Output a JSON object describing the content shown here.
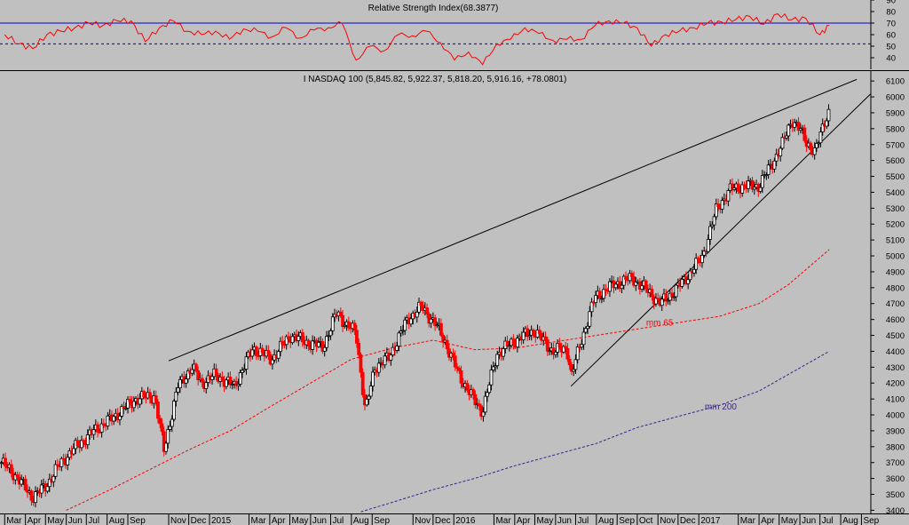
{
  "chart_data": [
    {
      "type": "line",
      "title": "Relative Strength Index(68.3877)",
      "ylim": [
        30,
        90
      ],
      "y_ticks": [
        40,
        50,
        60,
        70,
        80,
        90
      ],
      "levels": [
        {
          "value": 70,
          "style": "solid",
          "color": "#0000cc"
        },
        {
          "value": 52,
          "style": "dashed",
          "color": "#0000cc"
        }
      ],
      "series": [
        {
          "color": "#ff0000",
          "x": [
            "2014-03-01",
            "2014-03-22",
            "2014-04-12",
            "2014-05-03",
            "2014-05-24",
            "2014-06-14",
            "2014-07-05",
            "2014-07-26",
            "2014-08-16",
            "2014-09-06",
            "2014-09-27",
            "2014-10-18",
            "2014-11-08",
            "2014-11-29",
            "2014-12-20",
            "2015-01-10",
            "2015-01-31",
            "2015-02-21",
            "2015-03-14",
            "2015-04-04",
            "2015-04-25",
            "2015-05-16",
            "2015-06-06",
            "2015-06-27",
            "2015-07-18",
            "2015-08-08",
            "2015-08-29",
            "2015-09-19",
            "2015-10-10",
            "2015-10-31",
            "2015-11-21",
            "2015-12-12",
            "2016-01-02",
            "2016-01-23",
            "2016-02-13",
            "2016-03-05",
            "2016-03-26",
            "2016-04-16",
            "2016-05-07",
            "2016-05-28",
            "2016-06-18",
            "2016-07-09",
            "2016-07-30",
            "2016-08-20",
            "2016-09-10",
            "2016-10-01",
            "2016-10-22",
            "2016-11-12",
            "2016-12-03",
            "2016-12-24",
            "2017-01-14",
            "2017-02-04",
            "2017-02-25",
            "2017-03-18",
            "2017-04-08",
            "2017-04-29",
            "2017-05-20",
            "2017-06-10",
            "2017-07-01",
            "2017-07-15"
          ],
          "values": [
            60,
            52,
            48,
            60,
            63,
            66,
            70,
            68,
            72,
            72,
            54,
            66,
            72,
            63,
            60,
            63,
            56,
            65,
            63,
            58,
            66,
            57,
            64,
            66,
            70,
            38,
            50,
            46,
            60,
            59,
            63,
            53,
            38,
            45,
            34,
            52,
            56,
            66,
            61,
            55,
            56,
            56,
            68,
            72,
            70,
            66,
            50,
            60,
            63,
            66,
            70,
            71,
            73,
            76,
            69,
            78,
            73,
            74,
            60,
            68
          ]
        }
      ]
    },
    {
      "type": "candlestick",
      "title": "I NASDAQ 100 (5,845.82, 5,922.37, 5,818.20, 5,916.16, +78.0801)",
      "ylim": [
        3380,
        6140
      ],
      "y_ticks": [
        3400,
        3500,
        3600,
        3700,
        3800,
        3900,
        4000,
        4100,
        4200,
        4300,
        4400,
        4500,
        4600,
        4700,
        4800,
        4900,
        5000,
        5100,
        5200,
        5300,
        5400,
        5500,
        5600,
        5700,
        5800,
        5900,
        6000,
        6100
      ],
      "x_range": [
        "2014-02-22",
        "2017-09-15"
      ],
      "x_tick_labels": [
        {
          "label": "Mar",
          "date": "2014-03-01"
        },
        {
          "label": "Apr",
          "date": "2014-04-01"
        },
        {
          "label": "May",
          "date": "2014-05-01"
        },
        {
          "label": "Jun",
          "date": "2014-06-01"
        },
        {
          "label": "Jul",
          "date": "2014-07-01"
        },
        {
          "label": "Aug",
          "date": "2014-08-01"
        },
        {
          "label": "Sep",
          "date": "2014-09-01"
        },
        {
          "label": "Nov",
          "date": "2014-11-01"
        },
        {
          "label": "Dec",
          "date": "2014-12-01"
        },
        {
          "label": "2015",
          "date": "2015-01-01"
        },
        {
          "label": "Mar",
          "date": "2015-03-01"
        },
        {
          "label": "Apr",
          "date": "2015-04-01"
        },
        {
          "label": "May",
          "date": "2015-05-01"
        },
        {
          "label": "Jun",
          "date": "2015-06-01"
        },
        {
          "label": "Jul",
          "date": "2015-07-01"
        },
        {
          "label": "Aug",
          "date": "2015-08-01"
        },
        {
          "label": "Sep",
          "date": "2015-09-01"
        },
        {
          "label": "Nov",
          "date": "2015-11-01"
        },
        {
          "label": "Dec",
          "date": "2015-12-01"
        },
        {
          "label": "2016",
          "date": "2016-01-01"
        },
        {
          "label": "Mar",
          "date": "2016-03-01"
        },
        {
          "label": "Apr",
          "date": "2016-04-01"
        },
        {
          "label": "May",
          "date": "2016-05-01"
        },
        {
          "label": "Jun",
          "date": "2016-06-01"
        },
        {
          "label": "Jul",
          "date": "2016-07-01"
        },
        {
          "label": "Aug",
          "date": "2016-08-01"
        },
        {
          "label": "Sep",
          "date": "2016-09-01"
        },
        {
          "label": "Oct",
          "date": "2016-10-01"
        },
        {
          "label": "Nov",
          "date": "2016-11-01"
        },
        {
          "label": "Dec",
          "date": "2016-12-01"
        },
        {
          "label": "2017",
          "date": "2017-01-01"
        },
        {
          "label": "Mar",
          "date": "2017-03-01"
        },
        {
          "label": "Apr",
          "date": "2017-04-01"
        },
        {
          "label": "May",
          "date": "2017-05-01"
        },
        {
          "label": "Jun",
          "date": "2017-06-01"
        },
        {
          "label": "Jul",
          "date": "2017-07-01"
        },
        {
          "label": "Aug",
          "date": "2017-08-01"
        },
        {
          "label": "Sep",
          "date": "2017-09-01"
        }
      ],
      "candle_colors": {
        "up": "#000000",
        "down": "#ff0000"
      },
      "close_path": {
        "x": [
          "2014-02-24",
          "2014-03-15",
          "2014-04-12",
          "2014-05-03",
          "2014-05-24",
          "2014-06-21",
          "2014-07-19",
          "2014-08-09",
          "2014-09-13",
          "2014-10-11",
          "2014-10-25",
          "2014-11-15",
          "2014-12-06",
          "2014-12-20",
          "2015-01-10",
          "2015-02-07",
          "2015-03-07",
          "2015-04-04",
          "2015-05-02",
          "2015-05-30",
          "2015-06-20",
          "2015-07-11",
          "2015-07-25",
          "2015-08-08",
          "2015-08-22",
          "2015-09-05",
          "2015-09-26",
          "2015-10-24",
          "2015-11-14",
          "2015-12-05",
          "2015-12-19",
          "2016-01-09",
          "2016-01-30",
          "2016-02-13",
          "2016-03-05",
          "2016-04-02",
          "2016-04-30",
          "2016-05-28",
          "2016-06-18",
          "2016-06-25",
          "2016-07-09",
          "2016-07-30",
          "2016-08-27",
          "2016-09-24",
          "2016-10-22",
          "2016-11-05",
          "2016-11-26",
          "2016-12-17",
          "2017-01-07",
          "2017-01-28",
          "2017-02-18",
          "2017-03-11",
          "2017-04-01",
          "2017-04-15",
          "2017-05-06",
          "2017-05-20",
          "2017-06-03",
          "2017-06-10",
          "2017-06-24",
          "2017-07-08",
          "2017-07-15"
        ],
        "values": [
          3700,
          3630,
          3480,
          3560,
          3700,
          3820,
          3920,
          3980,
          4100,
          4120,
          3780,
          4180,
          4300,
          4200,
          4250,
          4180,
          4420,
          4350,
          4500,
          4450,
          4430,
          4650,
          4560,
          4520,
          4020,
          4300,
          4360,
          4600,
          4680,
          4570,
          4460,
          4250,
          4100,
          4020,
          4380,
          4470,
          4530,
          4400,
          4420,
          4250,
          4460,
          4740,
          4820,
          4860,
          4760,
          4700,
          4780,
          4880,
          5000,
          5300,
          5420,
          5440,
          5440,
          5540,
          5700,
          5860,
          5780,
          5720,
          5650,
          5850,
          5916
        ]
      },
      "series": [
        {
          "name": "mm 65",
          "color": "#ff0000",
          "style": "dashed",
          "x": [
            "2014-06-01",
            "2014-08-01",
            "2014-10-01",
            "2014-12-01",
            "2015-02-01",
            "2015-04-01",
            "2015-06-01",
            "2015-08-01",
            "2015-10-01",
            "2015-12-01",
            "2016-02-01",
            "2016-04-01",
            "2016-06-01",
            "2016-08-01",
            "2016-10-01",
            "2016-12-01",
            "2017-02-01",
            "2017-04-01",
            "2017-05-15",
            "2017-07-15"
          ],
          "values": [
            3400,
            3520,
            3650,
            3780,
            3900,
            4050,
            4200,
            4350,
            4420,
            4470,
            4410,
            4420,
            4460,
            4500,
            4540,
            4580,
            4620,
            4700,
            4820,
            5040
          ]
        },
        {
          "name": "mm 200",
          "color": "#3b1f8a",
          "style": "dashed",
          "x": [
            "2015-08-15",
            "2015-10-01",
            "2015-12-01",
            "2016-02-01",
            "2016-04-01",
            "2016-06-01",
            "2016-08-01",
            "2016-10-01",
            "2016-12-01",
            "2017-02-01",
            "2017-04-01",
            "2017-07-15"
          ],
          "values": [
            3390,
            3450,
            3530,
            3600,
            3680,
            3750,
            3820,
            3920,
            3990,
            4060,
            4150,
            4400
          ]
        }
      ],
      "trendlines": [
        {
          "from": [
            "2014-11-01",
            4340
          ],
          "to": [
            "2017-08-25",
            6110
          ],
          "color": "#000000"
        },
        {
          "from": [
            "2016-06-24",
            4180
          ],
          "to": [
            "2017-09-15",
            6020
          ],
          "color": "#000000"
        }
      ]
    }
  ]
}
